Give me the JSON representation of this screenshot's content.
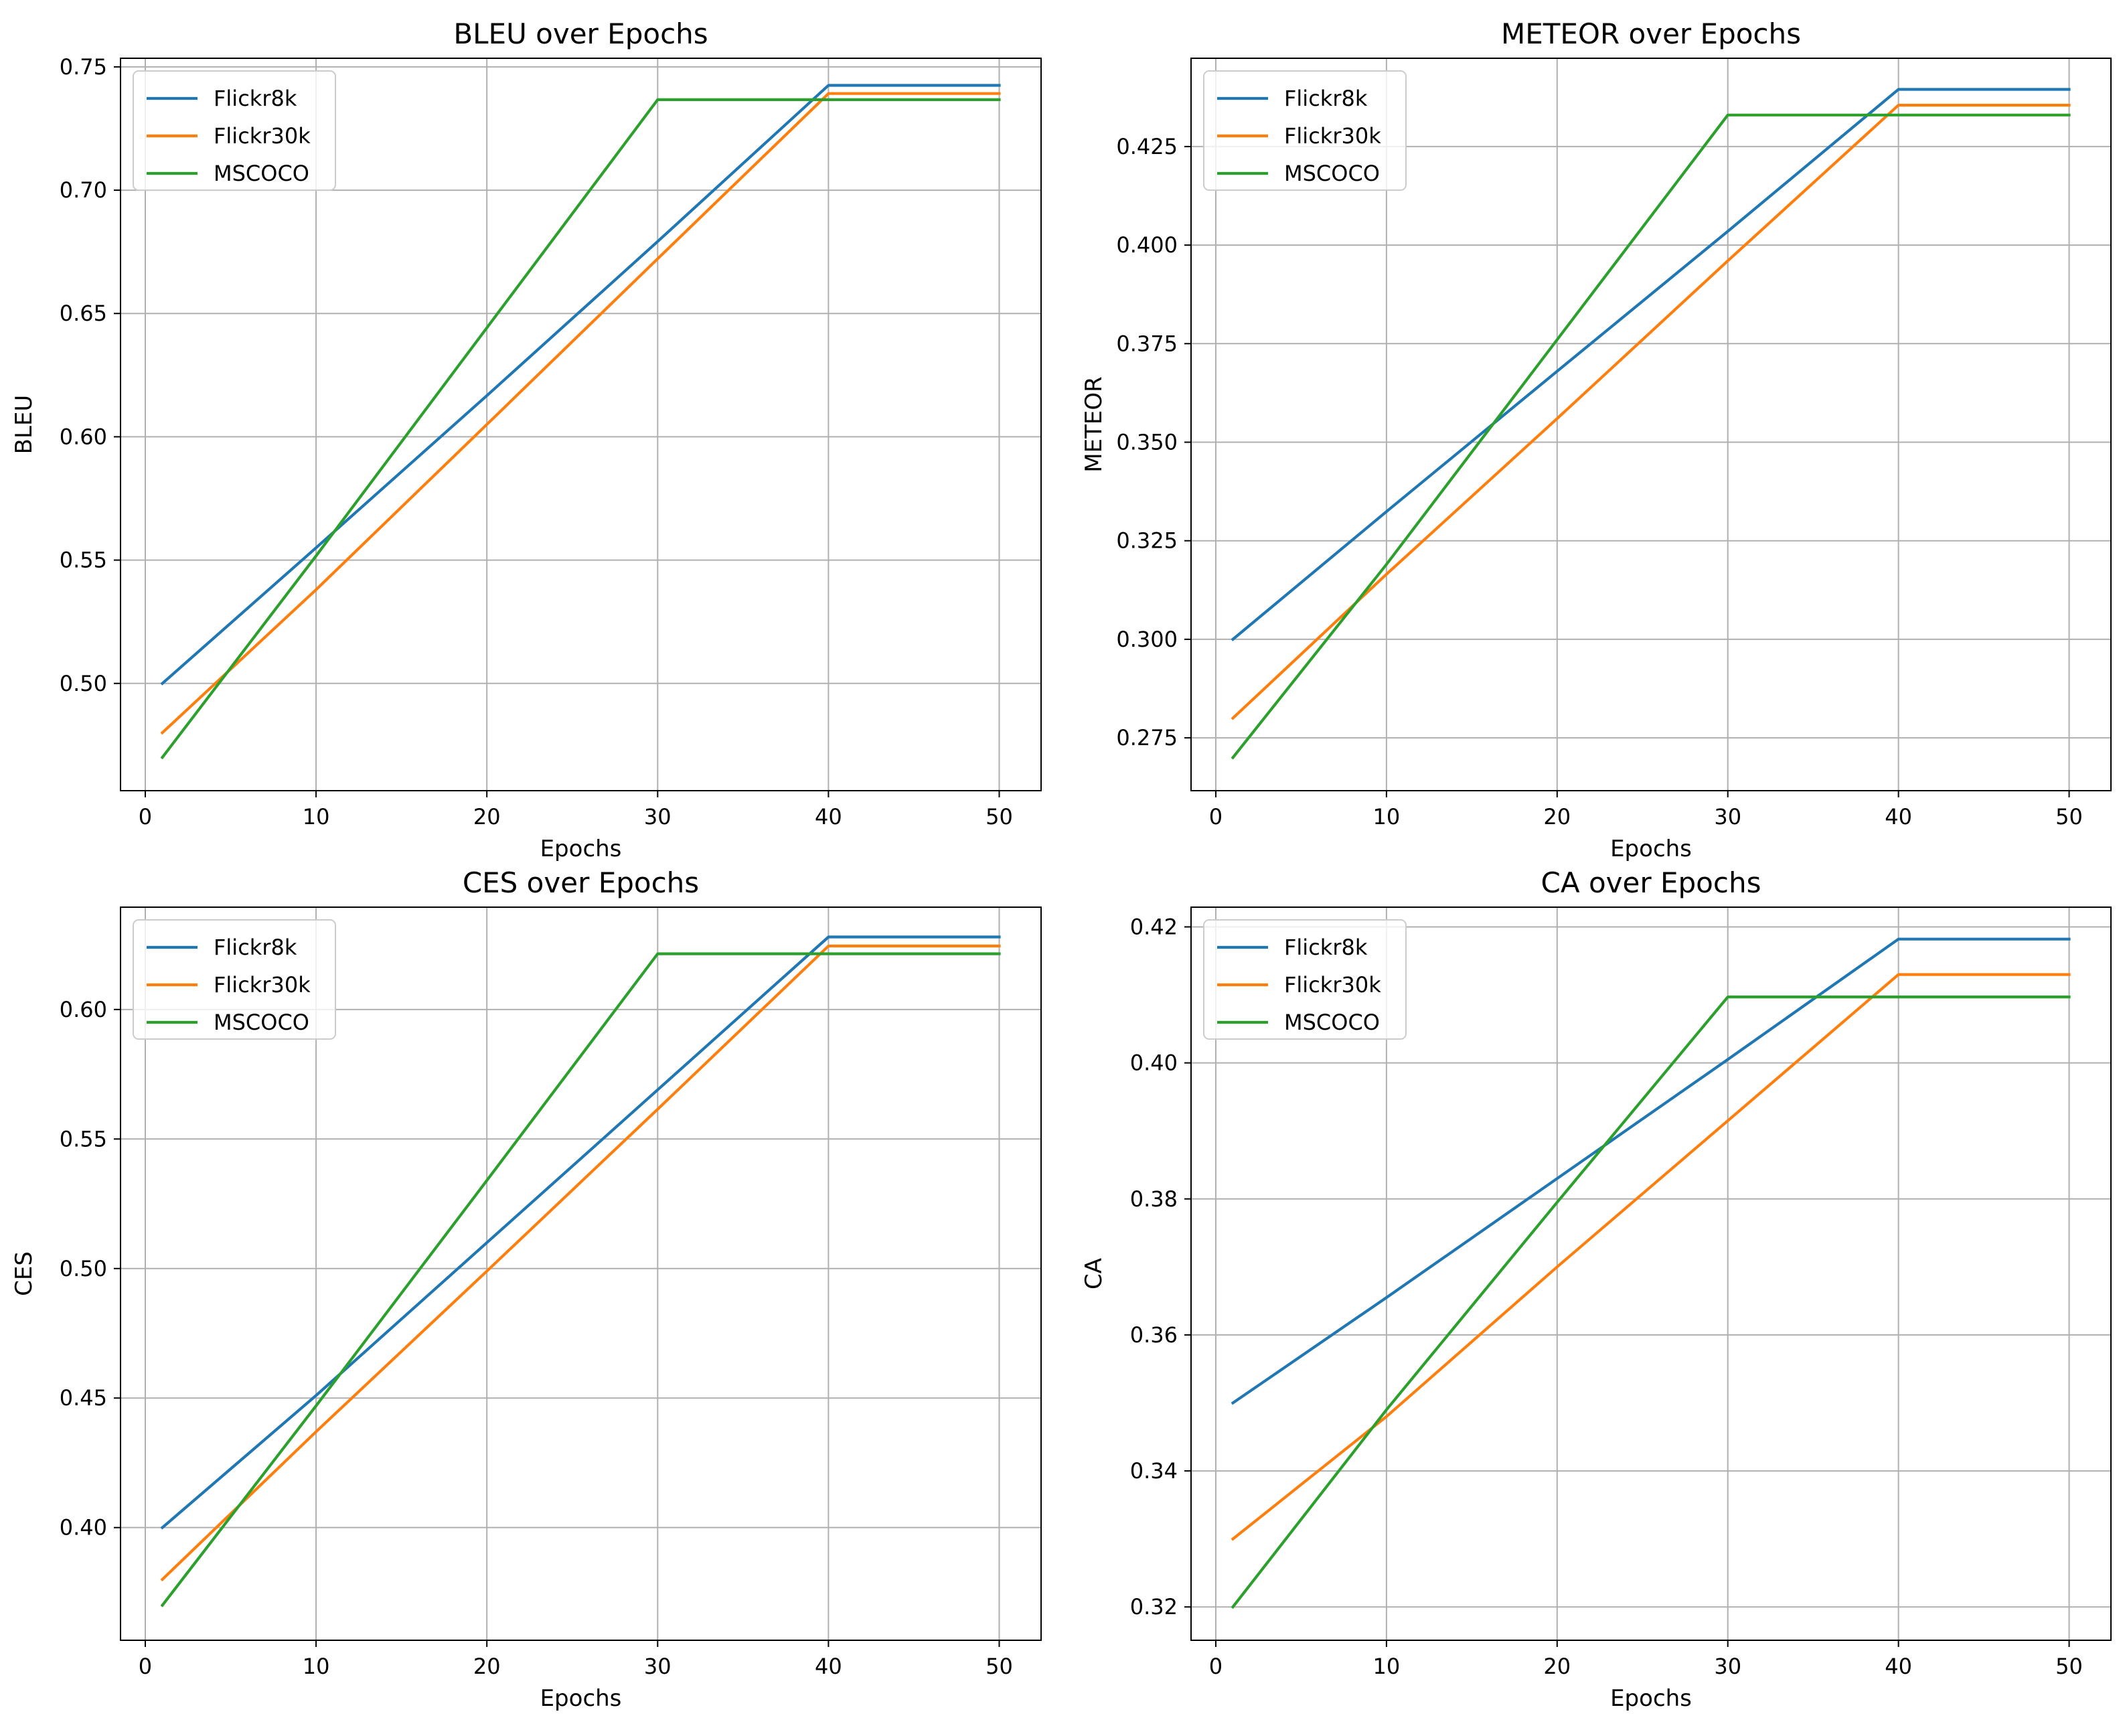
{
  "figure": {
    "panels": 4,
    "layout": "2x2"
  },
  "chart_data": [
    {
      "type": "line",
      "title": "BLEU over Epochs",
      "xlabel": "Epochs",
      "ylabel": "BLEU",
      "x": [
        1,
        10,
        20,
        30,
        40,
        50
      ],
      "xlim": [
        -1.45,
        52.45
      ],
      "xticks": [
        0,
        10,
        20,
        30,
        40,
        50
      ],
      "ylim": [
        0.4565,
        0.7535
      ],
      "yticks": [
        0.5,
        0.55,
        0.6,
        0.65,
        0.7,
        0.75
      ],
      "ytick_labels": [
        "0.50",
        "0.55",
        "0.60",
        "0.65",
        "0.70",
        "0.75"
      ],
      "grid": true,
      "legend_position": "upper-left",
      "series": [
        {
          "name": "Flickr8k",
          "color": "#1f77b4",
          "values": [
            0.5,
            0.555,
            0.6167,
            0.6792,
            0.7425,
            0.7425
          ]
        },
        {
          "name": "Flickr30k",
          "color": "#ff7f0e",
          "values": [
            0.48,
            0.538,
            0.605,
            0.6722,
            0.7392,
            0.7392
          ]
        },
        {
          "name": "MSCOCO",
          "color": "#2ca02c",
          "values": [
            0.47,
            0.5517,
            0.6442,
            0.7367,
            0.7367,
            0.7367
          ]
        }
      ]
    },
    {
      "type": "line",
      "title": "METEOR over Epochs",
      "xlabel": "Epochs",
      "ylabel": "METEOR",
      "x": [
        1,
        10,
        20,
        30,
        40,
        50
      ],
      "xlim": [
        -1.45,
        52.45
      ],
      "xticks": [
        0,
        10,
        20,
        30,
        40,
        50
      ],
      "ylim": [
        0.2616,
        0.4474
      ],
      "yticks": [
        0.275,
        0.3,
        0.325,
        0.35,
        0.375,
        0.4,
        0.425
      ],
      "ytick_labels": [
        "0.275",
        "0.300",
        "0.325",
        "0.350",
        "0.375",
        "0.400",
        "0.425"
      ],
      "grid": true,
      "legend_position": "upper-left",
      "series": [
        {
          "name": "Flickr8k",
          "color": "#1f77b4",
          "values": [
            0.3,
            0.3324,
            0.368,
            0.4035,
            0.4395,
            0.4395
          ]
        },
        {
          "name": "Flickr30k",
          "color": "#ff7f0e",
          "values": [
            0.28,
            0.3165,
            0.356,
            0.396,
            0.4355,
            0.4355
          ]
        },
        {
          "name": "MSCOCO",
          "color": "#2ca02c",
          "values": [
            0.27,
            0.319,
            0.376,
            0.433,
            0.433,
            0.433
          ]
        }
      ]
    },
    {
      "type": "line",
      "title": "CES over Epochs",
      "xlabel": "Epochs",
      "ylabel": "CES",
      "x": [
        1,
        10,
        20,
        30,
        40,
        50
      ],
      "xlim": [
        -1.45,
        52.45
      ],
      "xticks": [
        0,
        10,
        20,
        30,
        40,
        50
      ],
      "ylim": [
        0.3565,
        0.6395
      ],
      "yticks": [
        0.4,
        0.45,
        0.5,
        0.55,
        0.6
      ],
      "ytick_labels": [
        "0.40",
        "0.45",
        "0.50",
        "0.55",
        "0.60"
      ],
      "grid": true,
      "legend_position": "upper-left",
      "series": [
        {
          "name": "Flickr8k",
          "color": "#1f77b4",
          "values": [
            0.4,
            0.451,
            0.51,
            0.569,
            0.628,
            0.628
          ]
        },
        {
          "name": "Flickr30k",
          "color": "#ff7f0e",
          "values": [
            0.38,
            0.437,
            0.499,
            0.5615,
            0.6245,
            0.6245
          ]
        },
        {
          "name": "MSCOCO",
          "color": "#2ca02c",
          "values": [
            0.37,
            0.447,
            0.534,
            0.6215,
            0.6215,
            0.6215
          ]
        }
      ]
    },
    {
      "type": "line",
      "title": "CA over Epochs",
      "xlabel": "Epochs",
      "ylabel": "CA",
      "x": [
        1,
        10,
        20,
        30,
        40,
        50
      ],
      "xlim": [
        -1.45,
        52.45
      ],
      "xticks": [
        0,
        10,
        20,
        30,
        40,
        50
      ],
      "ylim": [
        0.3151,
        0.4229
      ],
      "yticks": [
        0.32,
        0.34,
        0.36,
        0.38,
        0.4,
        0.42
      ],
      "ytick_labels": [
        "0.32",
        "0.34",
        "0.36",
        "0.38",
        "0.40",
        "0.42"
      ],
      "grid": true,
      "legend_position": "upper-left",
      "series": [
        {
          "name": "Flickr8k",
          "color": "#1f77b4",
          "values": [
            0.35,
            0.3655,
            0.383,
            0.4005,
            0.4182,
            0.4182
          ]
        },
        {
          "name": "Flickr30k",
          "color": "#ff7f0e",
          "values": [
            0.33,
            0.348,
            0.37,
            0.3915,
            0.413,
            0.413
          ]
        },
        {
          "name": "MSCOCO",
          "color": "#2ca02c",
          "values": [
            0.32,
            0.349,
            0.3795,
            0.4097,
            0.4097,
            0.4097
          ]
        }
      ]
    }
  ]
}
